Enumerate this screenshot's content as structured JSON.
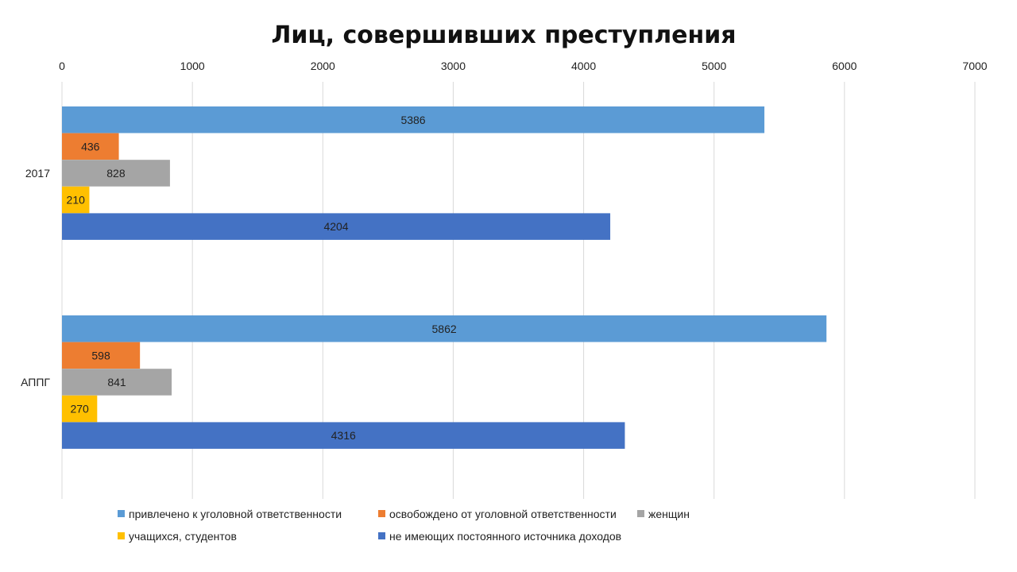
{
  "chart_data": {
    "type": "bar",
    "orientation": "horizontal",
    "title": "Лиц, совершивших преступления",
    "xlabel": "",
    "ylabel": "",
    "xlim": [
      0,
      7000
    ],
    "ticks": [
      0,
      1000,
      2000,
      3000,
      4000,
      5000,
      6000,
      7000
    ],
    "tick_labels": [
      "0",
      "1000",
      "2000",
      "3000",
      "4000",
      "5000",
      "6000",
      "7000"
    ],
    "grid": true,
    "axis_position": "top",
    "legend_position": "bottom",
    "categories": [
      "2017",
      "АППГ"
    ],
    "series": [
      {
        "name": "привлечено к уголовной ответственности",
        "color": "#5B9BD5",
        "values": [
          5386,
          5862
        ],
        "labels": [
          "5386",
          "5862"
        ]
      },
      {
        "name": "освобождено от уголовной ответственности",
        "color": "#ED7D31",
        "values": [
          436,
          598
        ],
        "labels": [
          "436",
          "598"
        ]
      },
      {
        "name": "женщин",
        "color": "#A5A5A5",
        "values": [
          828,
          841
        ],
        "labels": [
          "828",
          "841"
        ]
      },
      {
        "name": "учащихся, студентов",
        "color": "#FFC000",
        "values": [
          210,
          270
        ],
        "labels": [
          "210",
          "270"
        ]
      },
      {
        "name": "не имеющих постоянного источника доходов",
        "color": "#4472C4",
        "values": [
          4204,
          4316
        ],
        "labels": [
          "4204",
          "4316"
        ]
      }
    ]
  }
}
